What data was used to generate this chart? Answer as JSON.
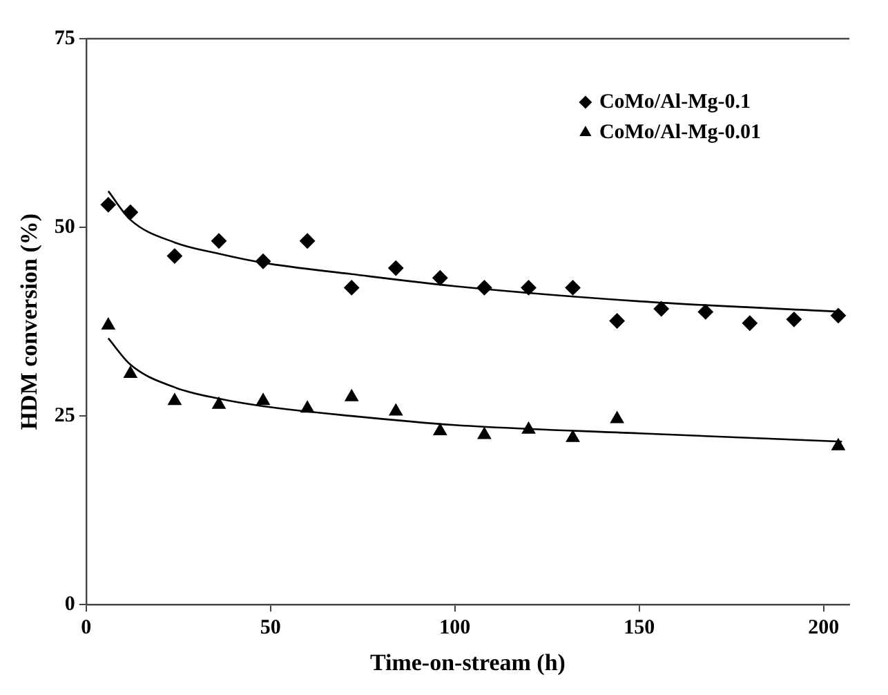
{
  "chart_data": {
    "type": "scatter",
    "xlabel": "Time-on-stream (h)",
    "ylabel": "HDM conversion (%)",
    "xlim": [
      0,
      207
    ],
    "xticks": [
      0,
      50,
      100,
      150,
      200
    ],
    "ylim": [
      0,
      75
    ],
    "yticks": [
      0,
      25,
      50,
      75
    ],
    "grid": false,
    "legend": "top right",
    "series": [
      {
        "name": "CoMo/Al-Mg-0.1",
        "color": "#000000",
        "marker": "diamond",
        "x": [
          6,
          12,
          24,
          36,
          48,
          60,
          72,
          84,
          96,
          108,
          120,
          132,
          144,
          156,
          168,
          180,
          192,
          204
        ],
        "values": [
          53,
          52,
          46.2,
          48.2,
          45.5,
          48.2,
          42,
          44.6,
          43.3,
          42,
          42,
          42,
          37.6,
          39.2,
          38.8,
          37.3,
          37.8,
          38.3
        ]
      },
      {
        "name": "CoMo/Al-Mg-0.01",
        "color": "#000000",
        "marker": "triangle",
        "x": [
          6,
          12,
          24,
          36,
          48,
          60,
          72,
          84,
          96,
          108,
          120,
          132,
          144,
          204
        ],
        "values": [
          37,
          30.6,
          27,
          26.5,
          27,
          26,
          27.5,
          25.6,
          23,
          22.5,
          23.2,
          22.1,
          24.6,
          21
        ]
      },
      {
        "type": "line",
        "color": "#000000",
        "marker": "none",
        "x": [
          6,
          12,
          24,
          36,
          48,
          72,
          100,
          150,
          205
        ],
        "values": [
          54.8,
          51,
          48,
          46.5,
          45.3,
          43.8,
          42.2,
          40.2,
          38.8
        ]
      },
      {
        "type": "line",
        "color": "#000000",
        "marker": "none",
        "x": [
          6,
          12,
          24,
          36,
          48,
          72,
          100,
          150,
          205
        ],
        "values": [
          35.3,
          31.8,
          28.8,
          27.3,
          26.3,
          25,
          23.8,
          22.7,
          21.6
        ]
      }
    ]
  }
}
